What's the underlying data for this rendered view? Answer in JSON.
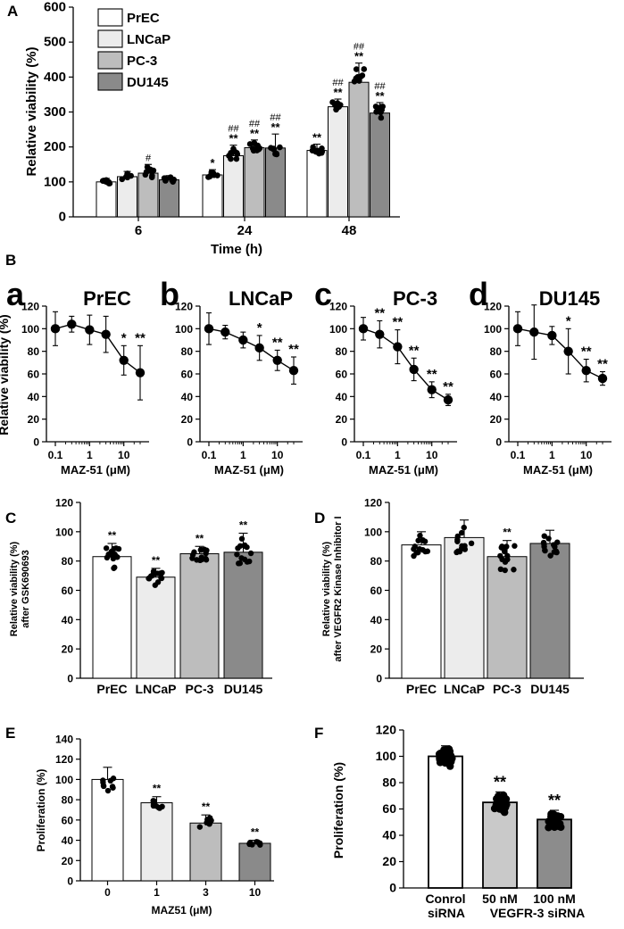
{
  "chart_data": [
    {
      "id": "A",
      "type": "bar",
      "panel_label": "A",
      "ylabel": "Relative viability (%)",
      "xlabel": "Time (h)",
      "ylim": [
        0,
        600
      ],
      "yticks": [
        0,
        100,
        200,
        300,
        400,
        500,
        600
      ],
      "categories": [
        "6",
        "24",
        "48"
      ],
      "legend": {
        "placement": "top-left"
      },
      "series": [
        {
          "name": "PrEC",
          "color": "#ffffff",
          "values": [
            100,
            120,
            190
          ],
          "err": [
            10,
            15,
            18
          ],
          "marks": [
            "",
            "*",
            "**"
          ],
          "hash": [
            "",
            "",
            ""
          ]
        },
        {
          "name": "LNCaP",
          "color": "#ececec",
          "values": [
            115,
            175,
            315
          ],
          "err": [
            15,
            30,
            22
          ],
          "marks": [
            "",
            "**",
            "**"
          ],
          "hash": [
            "",
            "##",
            "##"
          ]
        },
        {
          "name": "PC-3",
          "color": "#bdbdbd",
          "values": [
            125,
            198,
            385
          ],
          "err": [
            25,
            22,
            55
          ],
          "marks": [
            "",
            "**",
            "**"
          ],
          "hash": [
            "#",
            "##",
            "##"
          ]
        },
        {
          "name": "DU145",
          "color": "#8a8a8a",
          "values": [
            106,
            197,
            297
          ],
          "err": [
            12,
            40,
            30
          ],
          "marks": [
            "",
            "**",
            "**"
          ],
          "hash": [
            "",
            "##",
            "##"
          ]
        }
      ]
    },
    {
      "id": "B",
      "type": "line",
      "panel_label": "B",
      "ylabel": "Relative viability (%)",
      "xlabel": "MAZ-51 (μM)",
      "ylim": [
        0,
        120
      ],
      "yticks": [
        0,
        20,
        40,
        60,
        80,
        100,
        120
      ],
      "xticks": [
        "0.1",
        "1",
        "10"
      ],
      "xscale": "log",
      "x": [
        0.1,
        0.3,
        1,
        3,
        10,
        30
      ],
      "subplots": [
        {
          "letter": "a",
          "title": "PrEC",
          "y": [
            100,
            104,
            99,
            95,
            72,
            61
          ],
          "err": [
            15,
            7,
            13,
            16,
            13,
            24
          ],
          "marks": [
            "",
            "",
            "",
            "",
            "*",
            "**"
          ]
        },
        {
          "letter": "b",
          "title": "LNCaP",
          "y": [
            100,
            97,
            90,
            83,
            72,
            63
          ],
          "err": [
            14,
            6,
            7,
            11,
            9,
            12
          ],
          "marks": [
            "",
            "",
            "",
            "*",
            "**",
            "**"
          ]
        },
        {
          "letter": "c",
          "title": "PC-3",
          "y": [
            100,
            95,
            84,
            64,
            46,
            37
          ],
          "err": [
            10,
            12,
            15,
            10,
            7,
            5
          ],
          "marks": [
            "",
            "**",
            "**",
            "**",
            "**",
            "**"
          ]
        },
        {
          "letter": "d",
          "title": "DU145",
          "y": [
            100,
            97,
            94,
            80,
            63,
            56
          ],
          "err": [
            15,
            24,
            8,
            20,
            10,
            6
          ],
          "marks": [
            "",
            "",
            "",
            "*",
            "**",
            "**"
          ]
        }
      ]
    },
    {
      "id": "C",
      "type": "bar",
      "panel_label": "C",
      "ylabel_lines": [
        "Relative viability (%)",
        "after GSK690693"
      ],
      "ylim": [
        0,
        120
      ],
      "yticks": [
        0,
        20,
        40,
        60,
        80,
        100,
        120
      ],
      "categories": [
        "PrEC",
        "LNCaP",
        "PC-3",
        "DU145"
      ],
      "values": [
        83,
        69,
        85,
        86
      ],
      "err": [
        9,
        6,
        5,
        13
      ],
      "marks": [
        "**",
        "**",
        "**",
        "**"
      ],
      "colors": [
        "#ffffff",
        "#ececec",
        "#bdbdbd",
        "#8a8a8a"
      ]
    },
    {
      "id": "D",
      "type": "bar",
      "panel_label": "D",
      "ylabel_lines": [
        "Relative viability (%)",
        "after VEGFR2 Kinase Inhibitor I"
      ],
      "ylim": [
        0,
        120
      ],
      "yticks": [
        0,
        20,
        40,
        60,
        80,
        100,
        120
      ],
      "categories": [
        "PrEC",
        "LNCaP",
        "PC-3",
        "DU145"
      ],
      "values": [
        91,
        96,
        83,
        92
      ],
      "err": [
        9,
        12,
        11,
        9
      ],
      "marks": [
        "",
        "",
        "**",
        ""
      ],
      "colors": [
        "#ffffff",
        "#ececec",
        "#bdbdbd",
        "#8a8a8a"
      ]
    },
    {
      "id": "E",
      "type": "bar",
      "panel_label": "E",
      "ylabel": "Proliferation (%)",
      "xlabel": "MAZ51 (μM)",
      "ylim": [
        0,
        140
      ],
      "yticks": [
        0,
        20,
        40,
        60,
        80,
        100,
        120,
        140
      ],
      "categories": [
        "0",
        "1",
        "3",
        "10"
      ],
      "values": [
        100,
        77,
        57,
        37
      ],
      "err": [
        12,
        6,
        8,
        3
      ],
      "marks": [
        "",
        "**",
        "**",
        "**"
      ],
      "colors": [
        "#ffffff",
        "#ececec",
        "#bdbdbd",
        "#8a8a8a"
      ]
    },
    {
      "id": "F",
      "type": "bar",
      "panel_label": "F",
      "ylabel": "Proliferation (%)",
      "ylim": [
        0,
        120
      ],
      "yticks": [
        0,
        20,
        40,
        60,
        80,
        100,
        120
      ],
      "categories": [
        "Conrol",
        "50 nM",
        "100 nM"
      ],
      "category_lines2": [
        "siRNA",
        "VEGFR-3 siRNA"
      ],
      "values": [
        100,
        65,
        52
      ],
      "err": [
        8,
        8,
        7
      ],
      "marks": [
        "",
        "**",
        "**"
      ],
      "colors": [
        "#ffffff",
        "#c9c9c9",
        "#8c8c8c"
      ]
    }
  ]
}
